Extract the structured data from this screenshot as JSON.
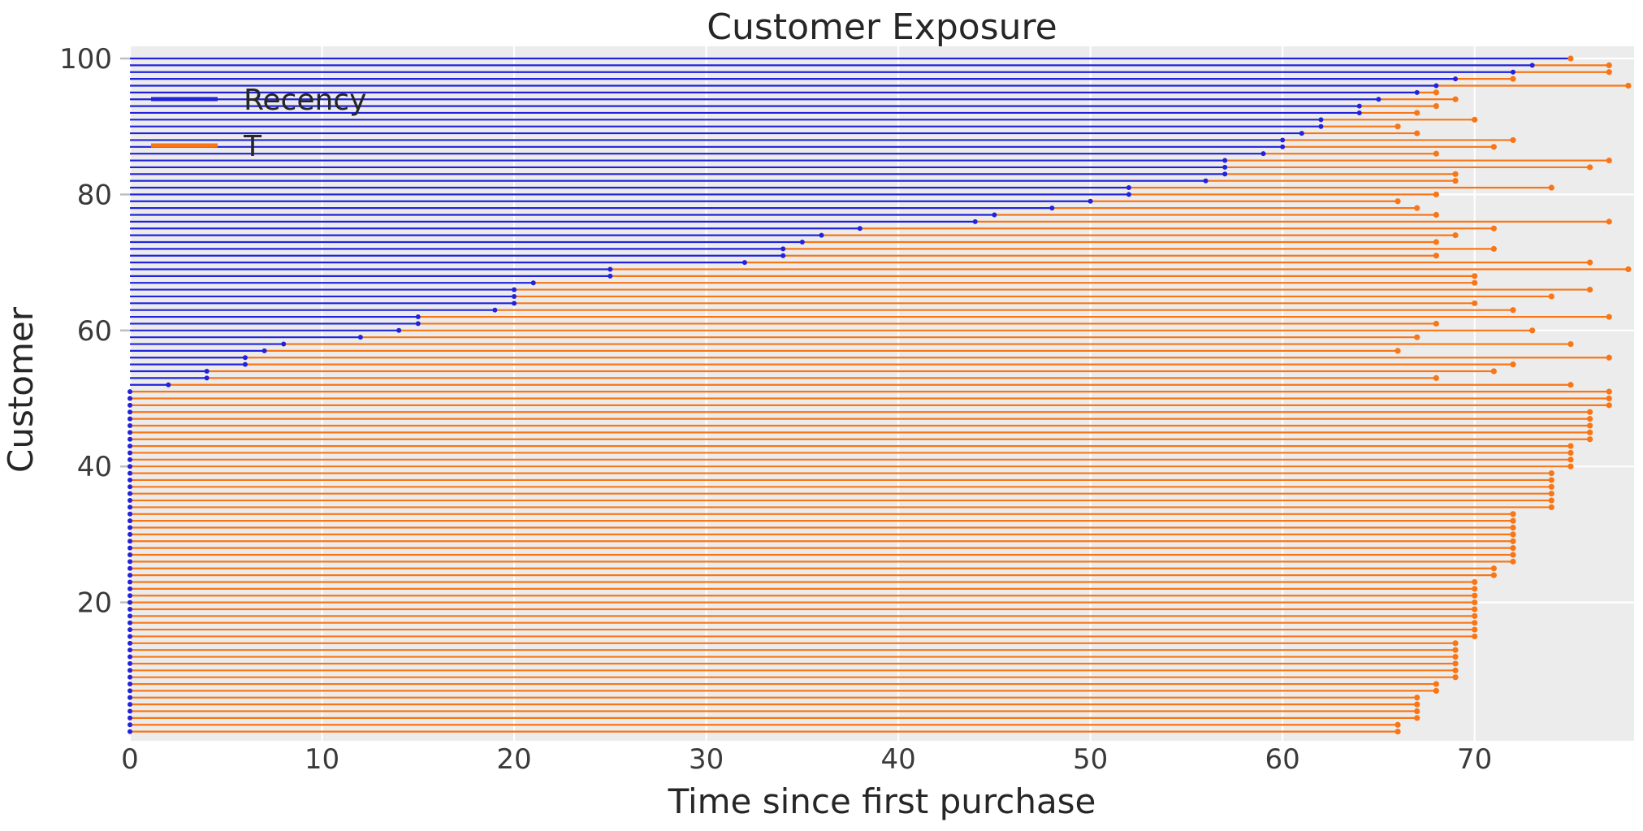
{
  "chart_data": {
    "type": "line",
    "variant": "customer-exposure-dumbbell",
    "title": "Customer Exposure",
    "xlabel": "Time since first purchase",
    "ylabel": "Customer",
    "legend_position": "upper left",
    "grid": true,
    "xticks": [
      0,
      10,
      20,
      30,
      40,
      50,
      60,
      70
    ],
    "yticks": [
      20,
      40,
      60,
      80,
      100
    ],
    "xlim": [
      0,
      78.3
    ],
    "ylim": [
      0,
      101.8
    ],
    "legend": [
      {
        "label": "Recency",
        "color": "#2222dd"
      },
      {
        "label": "T",
        "color": "#f97617"
      }
    ],
    "colors": {
      "recency_line": "#2222dd",
      "t_line": "#f97617",
      "plot_background": "#ececec",
      "gridline": "#ffffff",
      "tick_mark": "#bebebe",
      "text": "#262626",
      "tick_text": "#3a3a3a"
    },
    "series": [
      {
        "name": "Recency",
        "values": [
          0,
          0,
          0,
          0,
          0,
          0,
          0,
          0,
          0,
          0,
          0,
          0,
          0,
          0,
          0,
          0,
          0,
          0,
          0,
          0,
          0,
          0,
          0,
          0,
          0,
          0,
          0,
          0,
          0,
          0,
          0,
          0,
          0,
          0,
          0,
          0,
          0,
          0,
          0,
          0,
          0,
          0,
          0,
          0,
          0,
          0,
          0,
          0,
          0,
          0,
          0,
          2,
          4,
          4,
          6,
          6,
          7,
          8,
          12,
          14,
          15,
          15,
          19,
          20,
          20,
          20,
          21,
          25,
          25,
          32,
          34,
          34,
          35,
          36,
          38,
          44,
          45,
          48,
          50,
          52,
          52,
          56,
          57,
          57,
          57,
          59,
          60,
          60,
          61,
          62,
          62,
          64,
          64,
          65,
          67,
          68,
          69,
          72,
          73,
          75
        ]
      },
      {
        "name": "T",
        "values": [
          66,
          66,
          67,
          67,
          67,
          67,
          68,
          68,
          69,
          69,
          69,
          69,
          69,
          69,
          70,
          70,
          70,
          70,
          70,
          70,
          70,
          70,
          70,
          71,
          71,
          72,
          72,
          72,
          72,
          72,
          72,
          72,
          72,
          74,
          74,
          74,
          74,
          74,
          74,
          75,
          75,
          75,
          75,
          76,
          76,
          76,
          76,
          76,
          77,
          77,
          77,
          75,
          68,
          71,
          72,
          77,
          66,
          75,
          67,
          73,
          68,
          77,
          72,
          70,
          74,
          76,
          70,
          70,
          78,
          76,
          68,
          71,
          68,
          69,
          71,
          77,
          68,
          67,
          66,
          68,
          74,
          69,
          69,
          76,
          77,
          68,
          71,
          72,
          67,
          66,
          70,
          67,
          68,
          69,
          68,
          78,
          72,
          77,
          77,
          75
        ]
      }
    ],
    "x_customer_index": "1 (bottom) to 100 (top)"
  }
}
